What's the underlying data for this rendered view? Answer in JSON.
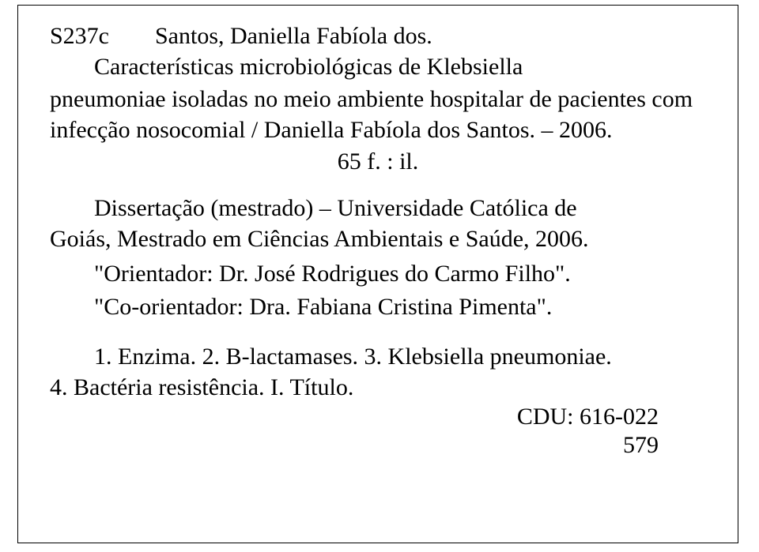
{
  "record": {
    "code": "S237c",
    "author": "Santos, Daniella Fabíola dos.",
    "title_line1": "Características microbiológicas de Klebsiella",
    "title_rest": "pneumoniae isoladas no meio ambiente hospitalar de pacientes com infecção nosocomial / Daniella Fabíola dos Santos. – 2006.",
    "pagination": "65 f. : il.",
    "dissertation_line1": "Dissertação (mestrado) – Universidade Católica de",
    "dissertation_rest": "Goiás, Mestrado em Ciências Ambientais e Saúde, 2006.",
    "advisor": "\"Orientador: Dr. José Rodrigues do Carmo Filho\".",
    "coadvisor": "\"Co-orientador: Dra. Fabiana Cristina Pimenta\".",
    "subjects_line1": "1. Enzima.  2. B-lactamases.  3. Klebsiella pneumoniae.",
    "subjects_rest": "4. Bactéria resistência.  I. Título.",
    "cdu_label": "CDU: 616-022",
    "cdu_number": "579"
  },
  "style": {
    "font_family": "Times New Roman",
    "font_size_pt": 22,
    "text_color": "#000000",
    "background_color": "#ffffff",
    "border_color": "#000000"
  }
}
